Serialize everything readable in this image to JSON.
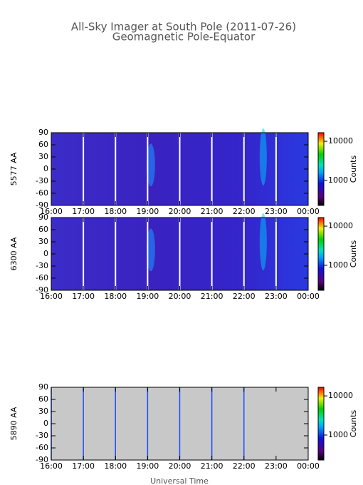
{
  "title": "All-Sky Imager at South Pole (2011-07-26)",
  "subtitle": "Geomagnetic Pole-Equator",
  "xlabel": "Universal Time",
  "chart_data": [
    {
      "type": "heatmap",
      "ylabel": "5577 AA",
      "xlim": [
        16,
        24
      ],
      "xticks": [
        {
          "value": 16,
          "label": "16:00"
        },
        {
          "value": 17,
          "label": "17:00"
        },
        {
          "value": 18,
          "label": "18:00"
        },
        {
          "value": 19,
          "label": "19:00"
        },
        {
          "value": 20,
          "label": "20:00"
        },
        {
          "value": 21,
          "label": "21:00"
        },
        {
          "value": 22,
          "label": "22:00"
        },
        {
          "value": 23,
          "label": "23:00"
        },
        {
          "value": 24,
          "label": "00:00"
        }
      ],
      "ylim": [
        -90,
        90
      ],
      "yticks": [
        90,
        60,
        30,
        0,
        -30,
        -60,
        -90
      ],
      "colorbar": {
        "label": "Counts",
        "lim": [
          230,
          16600
        ],
        "log": true,
        "ticks": [
          1000,
          10000
        ]
      }
    },
    {
      "type": "heatmap",
      "ylabel": "6300 AA",
      "xlim": [
        16,
        24
      ],
      "xticks": [
        {
          "value": 16,
          "label": "16:00"
        },
        {
          "value": 17,
          "label": "17:00"
        },
        {
          "value": 18,
          "label": "18:00"
        },
        {
          "value": 19,
          "label": "19:00"
        },
        {
          "value": 20,
          "label": "20:00"
        },
        {
          "value": 21,
          "label": "21:00"
        },
        {
          "value": 22,
          "label": "22:00"
        },
        {
          "value": 23,
          "label": "23:00"
        },
        {
          "value": 24,
          "label": "00:00"
        }
      ],
      "ylim": [
        -90,
        90
      ],
      "yticks": [
        90,
        60,
        30,
        0,
        -30,
        -60,
        -90
      ],
      "colorbar": {
        "label": "Counts",
        "lim": [
          230,
          16600
        ],
        "log": true,
        "ticks": [
          1000,
          10000
        ]
      }
    },
    {
      "type": "heatmap",
      "ylabel": "5890 AA",
      "xlim": [
        16,
        24
      ],
      "xticks": [
        {
          "value": 16,
          "label": "16:00"
        },
        {
          "value": 17,
          "label": "17:00"
        },
        {
          "value": 18,
          "label": "18:00"
        },
        {
          "value": 19,
          "label": "19:00"
        },
        {
          "value": 20,
          "label": "20:00"
        },
        {
          "value": 21,
          "label": "21:00"
        },
        {
          "value": 22,
          "label": "22:00"
        },
        {
          "value": 23,
          "label": "23:00"
        },
        {
          "value": 24,
          "label": "00:00"
        }
      ],
      "ylim": [
        -90,
        90
      ],
      "yticks": [
        90,
        60,
        30,
        0,
        -30,
        -60,
        -90
      ],
      "colorbar": {
        "label": "Counts",
        "lim": [
          230,
          16600
        ],
        "log": true,
        "ticks": [
          1000,
          10000
        ]
      }
    }
  ]
}
